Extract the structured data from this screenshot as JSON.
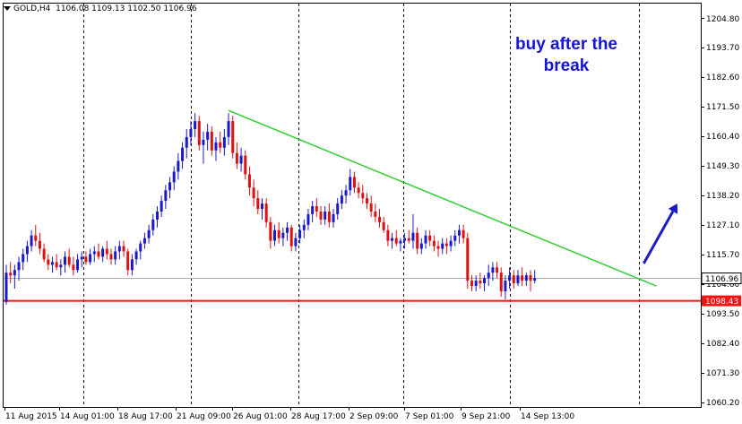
{
  "header": {
    "symbol": "GOLD,H4",
    "ohlc": "1106.08 1109.13 1102.50 1106.96"
  },
  "annotation": {
    "line1": "buy after the",
    "line2": "break"
  },
  "colors": {
    "bull": "#1a1ac8",
    "bear": "#dd1111",
    "trendline": "#33cc33",
    "support": "#ff1111",
    "arrow": "#1a1ac8",
    "grid": "#000000"
  },
  "chart_data": {
    "type": "candlestick",
    "y_ticks": [
      "1204.80",
      "1193.70",
      "1182.60",
      "1171.50",
      "1160.40",
      "1149.30",
      "1138.20",
      "1127.10",
      "1115.70",
      "1104.60",
      "1093.50",
      "1082.40",
      "1071.30",
      "1060.20"
    ],
    "x_ticks": [
      "11 Aug 2015",
      "14 Aug 01:00",
      "18 Aug 17:00",
      "21 Aug 09:00",
      "26 Aug 01:00",
      "28 Aug 17:00",
      "2 Sep 09:00",
      "7 Sep 01:00",
      "9 Sep 21:00",
      "14 Sep 13:00"
    ],
    "ylim": [
      1060.2,
      1204.8
    ],
    "current_price": "1106.96",
    "current_price_value": 1106.96,
    "support_level": "1098.43",
    "support_value": 1098.43,
    "trendline": {
      "start_index": 53,
      "start_price": 1170.0,
      "end_index": 155,
      "end_price": 1104.0
    },
    "arrow": {
      "from_index": 152,
      "from_price": 1112.5,
      "to_index": 160,
      "to_price": 1135.0
    },
    "candles": [
      [
        1098,
        1112,
        1097,
        1109
      ],
      [
        1109,
        1113,
        1105,
        1108
      ],
      [
        1108,
        1112,
        1103,
        1110
      ],
      [
        1110,
        1115,
        1106,
        1113
      ],
      [
        1113,
        1118,
        1110,
        1116
      ],
      [
        1116,
        1121,
        1113,
        1119
      ],
      [
        1119,
        1125,
        1117,
        1123
      ],
      [
        1123,
        1127,
        1119,
        1121
      ],
      [
        1121,
        1124,
        1116,
        1118
      ],
      [
        1118,
        1120,
        1113,
        1114
      ],
      [
        1114,
        1116,
        1110,
        1112
      ],
      [
        1112,
        1115,
        1109,
        1113
      ],
      [
        1113,
        1116,
        1110,
        1111
      ],
      [
        1111,
        1114,
        1108,
        1112
      ],
      [
        1112,
        1117,
        1109,
        1115
      ],
      [
        1115,
        1118,
        1111,
        1112
      ],
      [
        1112,
        1115,
        1108,
        1110
      ],
      [
        1110,
        1116,
        1109,
        1114
      ],
      [
        1114,
        1117,
        1111,
        1115
      ],
      [
        1115,
        1117,
        1112,
        1113
      ],
      [
        1113,
        1118,
        1112,
        1116
      ],
      [
        1116,
        1119,
        1113,
        1117
      ],
      [
        1117,
        1120,
        1114,
        1115
      ],
      [
        1115,
        1119,
        1113,
        1118
      ],
      [
        1118,
        1121,
        1114,
        1116
      ],
      [
        1116,
        1118,
        1112,
        1114
      ],
      [
        1114,
        1119,
        1112,
        1117
      ],
      [
        1117,
        1121,
        1114,
        1119
      ],
      [
        1119,
        1121,
        1115,
        1117
      ],
      [
        1117,
        1118,
        1108,
        1110
      ],
      [
        1110,
        1116,
        1108,
        1114
      ],
      [
        1114,
        1118,
        1112,
        1117
      ],
      [
        1117,
        1121,
        1114,
        1120
      ],
      [
        1120,
        1124,
        1118,
        1122
      ],
      [
        1122,
        1127,
        1120,
        1125
      ],
      [
        1125,
        1131,
        1123,
        1129
      ],
      [
        1129,
        1134,
        1126,
        1132
      ],
      [
        1132,
        1138,
        1130,
        1136
      ],
      [
        1136,
        1142,
        1133,
        1140
      ],
      [
        1140,
        1145,
        1137,
        1143
      ],
      [
        1143,
        1149,
        1140,
        1147
      ],
      [
        1147,
        1154,
        1144,
        1151
      ],
      [
        1151,
        1158,
        1148,
        1156
      ],
      [
        1156,
        1163,
        1152,
        1160
      ],
      [
        1160,
        1166,
        1157,
        1163
      ],
      [
        1163,
        1169,
        1160,
        1166
      ],
      [
        1166,
        1168,
        1155,
        1157
      ],
      [
        1157,
        1162,
        1150,
        1159
      ],
      [
        1159,
        1165,
        1155,
        1162
      ],
      [
        1162,
        1164,
        1153,
        1155
      ],
      [
        1155,
        1160,
        1151,
        1158
      ],
      [
        1158,
        1162,
        1154,
        1156
      ],
      [
        1156,
        1163,
        1153,
        1160
      ],
      [
        1160,
        1169,
        1157,
        1166
      ],
      [
        1166,
        1168,
        1152,
        1154
      ],
      [
        1154,
        1158,
        1148,
        1150
      ],
      [
        1150,
        1156,
        1147,
        1153
      ],
      [
        1153,
        1155,
        1144,
        1146
      ],
      [
        1146,
        1149,
        1138,
        1141
      ],
      [
        1141,
        1144,
        1134,
        1137
      ],
      [
        1137,
        1140,
        1131,
        1133
      ],
      [
        1133,
        1137,
        1129,
        1135
      ],
      [
        1135,
        1137,
        1126,
        1128
      ],
      [
        1128,
        1130,
        1118,
        1121
      ],
      [
        1121,
        1127,
        1119,
        1125
      ],
      [
        1125,
        1128,
        1120,
        1122
      ],
      [
        1122,
        1126,
        1119,
        1124
      ],
      [
        1124,
        1128,
        1121,
        1126
      ],
      [
        1126,
        1127,
        1117,
        1119
      ],
      [
        1119,
        1124,
        1117,
        1122
      ],
      [
        1122,
        1127,
        1120,
        1125
      ],
      [
        1125,
        1129,
        1122,
        1127
      ],
      [
        1127,
        1133,
        1125,
        1131
      ],
      [
        1131,
        1136,
        1128,
        1134
      ],
      [
        1134,
        1137,
        1130,
        1132
      ],
      [
        1132,
        1134,
        1127,
        1129
      ],
      [
        1129,
        1134,
        1127,
        1132
      ],
      [
        1132,
        1135,
        1126,
        1128
      ],
      [
        1128,
        1133,
        1126,
        1131
      ],
      [
        1131,
        1137,
        1129,
        1135
      ],
      [
        1135,
        1140,
        1133,
        1138
      ],
      [
        1138,
        1142,
        1135,
        1140
      ],
      [
        1140,
        1148,
        1138,
        1145
      ],
      [
        1145,
        1147,
        1139,
        1141
      ],
      [
        1141,
        1143,
        1137,
        1139
      ],
      [
        1139,
        1142,
        1135,
        1137
      ],
      [
        1137,
        1139,
        1133,
        1135
      ],
      [
        1135,
        1138,
        1130,
        1132
      ],
      [
        1132,
        1135,
        1128,
        1130
      ],
      [
        1130,
        1133,
        1126,
        1128
      ],
      [
        1128,
        1130,
        1124,
        1125
      ],
      [
        1125,
        1127,
        1119,
        1121
      ],
      [
        1121,
        1124,
        1118,
        1122
      ],
      [
        1122,
        1125,
        1119,
        1120
      ],
      [
        1120,
        1122,
        1117,
        1121
      ],
      [
        1121,
        1124,
        1118,
        1122
      ],
      [
        1122,
        1125,
        1120,
        1121
      ],
      [
        1121,
        1131,
        1118,
        1124
      ],
      [
        1124,
        1126,
        1116,
        1118
      ],
      [
        1118,
        1122,
        1116,
        1120
      ],
      [
        1120,
        1125,
        1118,
        1123
      ],
      [
        1123,
        1125,
        1119,
        1121
      ],
      [
        1121,
        1123,
        1117,
        1119
      ],
      [
        1119,
        1121,
        1115,
        1118
      ],
      [
        1118,
        1122,
        1116,
        1120
      ],
      [
        1120,
        1122,
        1116,
        1119
      ],
      [
        1119,
        1123,
        1117,
        1121
      ],
      [
        1121,
        1125,
        1119,
        1123
      ],
      [
        1123,
        1127,
        1120,
        1125
      ],
      [
        1125,
        1127,
        1120,
        1122
      ],
      [
        1122,
        1124,
        1103,
        1106
      ],
      [
        1106,
        1108,
        1102,
        1104
      ],
      [
        1104,
        1108,
        1102,
        1106
      ],
      [
        1106,
        1109,
        1103,
        1105
      ],
      [
        1105,
        1108,
        1102,
        1107
      ],
      [
        1107,
        1112,
        1104,
        1109
      ],
      [
        1109,
        1113,
        1106,
        1111
      ],
      [
        1111,
        1113,
        1107,
        1109
      ],
      [
        1109,
        1111,
        1100,
        1102
      ],
      [
        1102,
        1108,
        1099,
        1106
      ],
      [
        1106,
        1111,
        1103,
        1108
      ],
      [
        1108,
        1110,
        1103,
        1105
      ],
      [
        1105,
        1110,
        1104,
        1108
      ],
      [
        1108,
        1111,
        1104,
        1106
      ],
      [
        1106,
        1109,
        1104,
        1108
      ],
      [
        1108,
        1110,
        1102,
        1106
      ],
      [
        1106,
        1110,
        1105,
        1107
      ]
    ]
  }
}
